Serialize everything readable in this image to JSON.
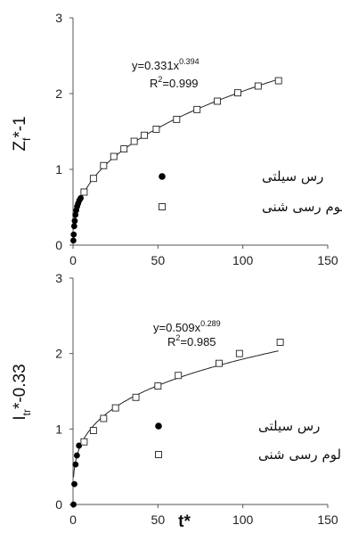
{
  "chart_data": [
    {
      "type": "scatter",
      "ylabel_main": "Z",
      "ylabel_sub": "f",
      "ylabel_rest": "*-1",
      "xlim": [
        0,
        150
      ],
      "ylim": [
        0,
        3
      ],
      "xticks": [
        "0",
        "50",
        "100",
        "150"
      ],
      "yticks": [
        "0",
        "1",
        "2",
        "3"
      ],
      "equation": {
        "base": "y=0.331x",
        "exp": "0.394",
        "r2_label": "R",
        "r2_exp": "2",
        "r2_value": "=0.999"
      },
      "fit": {
        "a": 0.331,
        "b": 0.394,
        "x_start": 0.3,
        "x_end": 121
      },
      "legend": [
        {
          "label": "رس سیلتی",
          "marker": "filled-circle"
        },
        {
          "label": "لوم رسی شنی",
          "marker": "open-square"
        }
      ],
      "series": [
        {
          "marker": "filled-circle",
          "x": [
            0.2,
            0.4,
            0.7,
            1.0,
            1.4,
            1.9,
            2.4,
            3.0,
            3.7,
            4.5
          ],
          "y": [
            0.06,
            0.14,
            0.25,
            0.32,
            0.4,
            0.46,
            0.51,
            0.55,
            0.59,
            0.62
          ]
        },
        {
          "marker": "open-square",
          "x": [
            6.5,
            12,
            18,
            24,
            30,
            36,
            42,
            49,
            61,
            73,
            85,
            97,
            109,
            121
          ],
          "y": [
            0.7,
            0.88,
            1.05,
            1.17,
            1.27,
            1.37,
            1.45,
            1.53,
            1.66,
            1.79,
            1.9,
            2.01,
            2.1,
            2.17
          ]
        }
      ]
    },
    {
      "type": "scatter",
      "xlabel": "t*",
      "ylabel_main": "I",
      "ylabel_sub": "tr",
      "ylabel_rest": "*-0.33",
      "xlim": [
        0,
        150
      ],
      "ylim": [
        0,
        3
      ],
      "xticks": [
        "0",
        "50",
        "100",
        "150"
      ],
      "yticks": [
        "0",
        "1",
        "2",
        "3"
      ],
      "equation": {
        "base": "y=0.509x",
        "exp": "0.289",
        "r2_label": "R",
        "r2_exp": "2",
        "r2_value": "=0.985"
      },
      "fit": {
        "a": 0.509,
        "b": 0.289,
        "x_start": 0.3,
        "x_end": 121
      },
      "legend": [
        {
          "label": "رس سیلتی",
          "marker": "filled-circle"
        },
        {
          "label": "لوم رسی شنی",
          "marker": "open-square"
        }
      ],
      "series": [
        {
          "marker": "filled-circle",
          "x": [
            0.3,
            0.8,
            1.5,
            2.3,
            3.5
          ],
          "y": [
            0.0,
            0.27,
            0.53,
            0.65,
            0.78
          ]
        },
        {
          "marker": "open-square",
          "x": [
            6.5,
            12,
            18,
            25,
            37,
            50,
            62,
            86,
            98,
            122
          ],
          "y": [
            0.83,
            0.98,
            1.14,
            1.28,
            1.42,
            1.57,
            1.71,
            1.87,
            2.0,
            2.15
          ]
        }
      ]
    }
  ]
}
